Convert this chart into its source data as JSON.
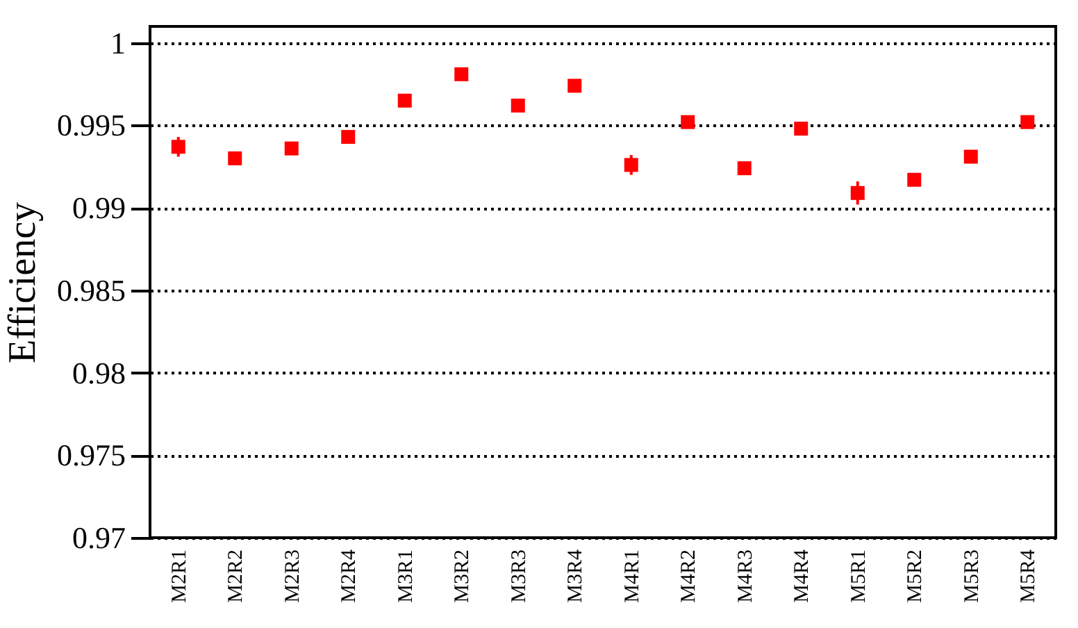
{
  "chart_data": {
    "type": "scatter",
    "ylabel": "Efficiency",
    "categories": [
      "M2R1",
      "M2R2",
      "M2R3",
      "M2R4",
      "M3R1",
      "M3R2",
      "M3R3",
      "M3R4",
      "M4R1",
      "M4R2",
      "M4R3",
      "M4R4",
      "M5R1",
      "M5R2",
      "M5R3",
      "M5R4"
    ],
    "series": [
      {
        "color": "#ff0000",
        "values": [
          0.9937,
          0.993,
          0.9936,
          0.9943,
          0.9965,
          0.9981,
          0.9962,
          0.9974,
          0.9926,
          0.9952,
          0.9924,
          0.9948,
          0.9909,
          0.9917,
          0.9931,
          0.9952
        ],
        "errors": [
          0.0006,
          null,
          null,
          null,
          0.0004,
          null,
          null,
          null,
          0.0006,
          null,
          null,
          0.0004,
          0.0007,
          0.0004,
          null,
          0.0004
        ]
      }
    ],
    "ylim": [
      0.97,
      1.001
    ],
    "yticks": [
      0.97,
      0.975,
      0.98,
      0.985,
      0.99,
      0.995,
      1
    ],
    "grid": "y",
    "marker": "square"
  }
}
